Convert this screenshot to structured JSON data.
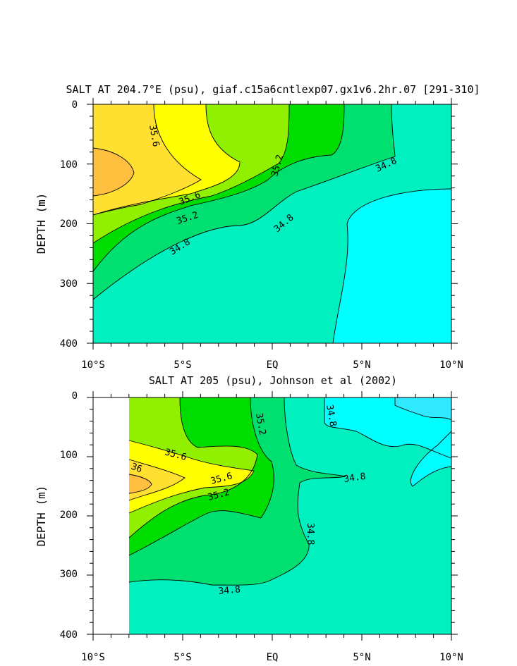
{
  "colors": {
    "lt_34_8": "#00ffff",
    "c34_8_35_0": "#00f0c0",
    "c35_0_35_2": "#00e070",
    "c35_2_35_4": "#00dd00",
    "c35_4_35_6": "#90f000",
    "c35_6_35_8": "#ffff00",
    "c35_8_36_0": "#ffe030",
    "gt_36_0": "#ffc040",
    "c34_6_34_8": "#30e8ff"
  },
  "chart_data": [
    {
      "type": "contour",
      "title": "SALT AT 204.7°E (psu), giaf.c15a6cntlexp07.gx1v6.2hr.07 [291-310]",
      "ylabel": "DEPTH (m)",
      "xlabel": "",
      "xlim": [
        -10,
        10
      ],
      "ylim": [
        400,
        0
      ],
      "x_tick_values": [
        -10,
        -5,
        0,
        5,
        10
      ],
      "x_tick_labels": [
        "10°S",
        "5°S",
        "EQ",
        "5°N",
        "10°N"
      ],
      "y_tick_labels": [
        "0",
        "100",
        "200",
        "300",
        "400"
      ],
      "contour_labels": [
        "35.6",
        "35.2",
        "34.8",
        "35.6",
        "35.2",
        "34.8",
        "34.8"
      ],
      "contour_levels": [
        34.8,
        35.0,
        35.2,
        35.4,
        35.6,
        35.8,
        36.0
      ]
    },
    {
      "type": "contour",
      "title": "SALT AT 205 (psu), Johnson et al (2002)",
      "ylabel": "DEPTH (m)",
      "xlabel": "",
      "xlim": [
        -10,
        10
      ],
      "ylim": [
        400,
        0
      ],
      "x_tick_values": [
        -10,
        -5,
        0,
        5,
        10
      ],
      "x_tick_labels": [
        "10°S",
        "5°S",
        "EQ",
        "5°N",
        "10°N"
      ],
      "y_tick_labels": [
        "0",
        "100",
        "200",
        "300",
        "400"
      ],
      "contour_labels": [
        "35.2",
        "34.8",
        "35.6",
        "36",
        "35.6",
        "35.2",
        "34.8",
        "34.8",
        "34.8"
      ],
      "contour_levels": [
        34.6,
        34.8,
        35.0,
        35.2,
        35.4,
        35.6,
        35.8,
        36.0
      ]
    }
  ]
}
